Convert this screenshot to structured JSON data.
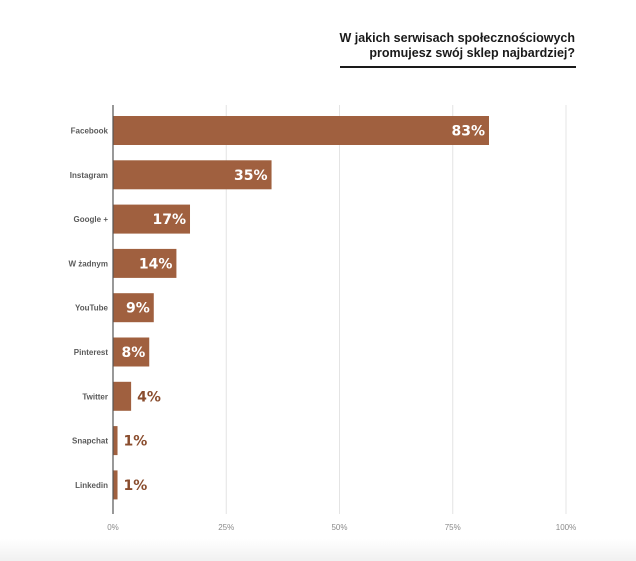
{
  "chart_data": {
    "type": "bar",
    "orientation": "horizontal",
    "title_lines": [
      "W jakich serwisach społecznościowych",
      "promujesz swój sklep najbardziej?"
    ],
    "categories": [
      "Facebook",
      "Instagram",
      "Google +",
      "W żadnym",
      "YouTube",
      "Pinterest",
      "Twitter",
      "Snapchat",
      "Linkedin"
    ],
    "values": [
      83,
      35,
      17,
      14,
      9,
      8,
      4,
      1,
      1
    ],
    "value_labels": [
      "83%",
      "35%",
      "17%",
      "14%",
      "9%",
      "8%",
      "4%",
      "1%",
      "1%"
    ],
    "xlim": [
      0,
      100
    ],
    "ticks": [
      0,
      25,
      50,
      75,
      100
    ],
    "tick_labels": [
      "0%",
      "25%",
      "50%",
      "75%",
      "100%"
    ],
    "grid": true,
    "legend": "none",
    "bar_color": "#a0603f",
    "label_inside_color": "#ffffff",
    "label_outside_color": "#8a4d2e",
    "grid_color": "#e4e4e4",
    "axis_color": "#555555"
  }
}
